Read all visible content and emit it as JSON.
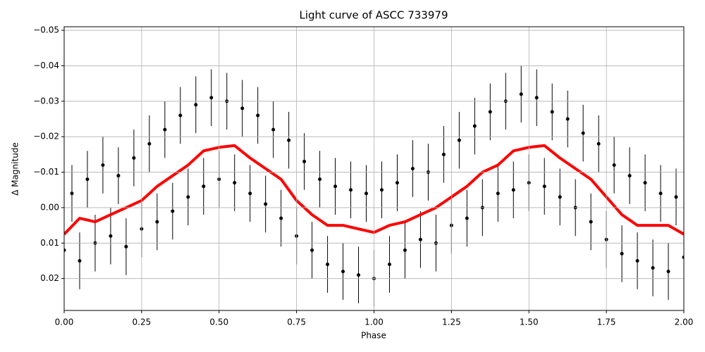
{
  "chart_data": {
    "type": "scatter_fit",
    "title": "Light curve of ASCC 733979",
    "x_label": "Phase",
    "y_label": "Δ Magnitude",
    "xlim": [
      0,
      2
    ],
    "ylim": [
      0.029,
      -0.051
    ],
    "xticks": [
      {
        "value": 0,
        "label": "0.00"
      },
      {
        "value": 0.25,
        "label": "0.25"
      },
      {
        "value": 0.5,
        "label": "0.50"
      },
      {
        "value": 0.75,
        "label": "0.75"
      },
      {
        "value": 1,
        "label": "1.00"
      },
      {
        "value": 1.25,
        "label": "1.25"
      },
      {
        "value": 1.5,
        "label": "1.50"
      },
      {
        "value": 1.75,
        "label": "1.75"
      },
      {
        "value": 2,
        "label": "2.00"
      }
    ],
    "yticks": [
      {
        "value": -0.05,
        "label": "−0.05"
      },
      {
        "value": -0.04,
        "label": "−0.04"
      },
      {
        "value": -0.03,
        "label": "−0.03"
      },
      {
        "value": -0.02,
        "label": "−0.02"
      },
      {
        "value": -0.01,
        "label": "−0.01"
      },
      {
        "value": 0,
        "label": "0.00"
      },
      0.01,
      0.02
    ],
    "grid": true,
    "series": [
      {
        "kind": "errorbar",
        "color": "#000000",
        "error": 0.008,
        "x": [
          0,
          0.025,
          0.05,
          0.075,
          0.1,
          0.125,
          0.15,
          0.175,
          0.2,
          0.225,
          0.25,
          0.275,
          0.3,
          0.325,
          0.35,
          0.375,
          0.4,
          0.425,
          0.45,
          0.475,
          0.5,
          0.525,
          0.55,
          0.575,
          0.6,
          0.625,
          0.65,
          0.675,
          0.7,
          0.725,
          0.75,
          0.775,
          0.8,
          0.825,
          0.85,
          0.875,
          0.9,
          0.925,
          0.95,
          0.975,
          1,
          1.025,
          1.05,
          1.075,
          1.1,
          1.125,
          1.15,
          1.175,
          1.2,
          1.225,
          1.25,
          1.275,
          1.3,
          1.325,
          1.35,
          1.375,
          1.4,
          1.425,
          1.45,
          1.475,
          1.5,
          1.525,
          1.55,
          1.575,
          1.6,
          1.625,
          1.65,
          1.675,
          1.7,
          1.725,
          1.75,
          1.775,
          1.8,
          1.825,
          1.85,
          1.875,
          1.9,
          1.925,
          1.95,
          1.975,
          2
        ],
        "values": [
          0.012,
          -0.004,
          0.015,
          -0.008,
          0.01,
          -0.012,
          0.008,
          -0.009,
          0.011,
          -0.014,
          0.006,
          -0.018,
          0.004,
          -0.022,
          0.001,
          -0.026,
          -0.003,
          -0.029,
          -0.006,
          -0.031,
          -0.008,
          -0.03,
          -0.007,
          -0.028,
          -0.004,
          -0.026,
          -0.001,
          -0.022,
          0.003,
          -0.019,
          0.008,
          -0.013,
          0.012,
          -0.008,
          0.016,
          -0.006,
          0.018,
          -0.005,
          0.019,
          -0.004,
          0.02,
          -0.005,
          0.016,
          -0.007,
          0.012,
          -0.011,
          0.009,
          -0.01,
          0.01,
          -0.015,
          0.005,
          -0.019,
          0.003,
          -0.023,
          0,
          -0.027,
          -0.004,
          -0.03,
          -0.005,
          -0.032,
          -0.007,
          -0.031,
          -0.006,
          -0.027,
          -0.003,
          -0.025,
          0,
          -0.021,
          0.004,
          -0.018,
          0.009,
          -0.012,
          0.013,
          -0.009,
          0.015,
          -0.007,
          0.017,
          -0.004,
          0.018,
          -0.003,
          0.014
        ]
      },
      {
        "kind": "line",
        "color": "#ff0000",
        "x": [
          0,
          0.05,
          0.1,
          0.15,
          0.2,
          0.25,
          0.3,
          0.35,
          0.4,
          0.45,
          0.5,
          0.55,
          0.6,
          0.65,
          0.7,
          0.75,
          0.8,
          0.85,
          0.9,
          0.95,
          1,
          1.05,
          1.1,
          1.15,
          1.2,
          1.25,
          1.3,
          1.35,
          1.4,
          1.45,
          1.5,
          1.55,
          1.6,
          1.65,
          1.7,
          1.75,
          1.8,
          1.85,
          1.9,
          1.95,
          2
        ],
        "values": [
          0.0075,
          0.003,
          0.004,
          0.002,
          0,
          -0.002,
          -0.006,
          -0.009,
          -0.012,
          -0.016,
          -0.017,
          -0.0175,
          -0.014,
          -0.011,
          -0.008,
          -0.002,
          0.002,
          0.005,
          0.005,
          0.006,
          0.007,
          0.005,
          0.004,
          0.002,
          0,
          -0.003,
          -0.006,
          -0.01,
          -0.012,
          -0.016,
          -0.017,
          -0.0175,
          -0.014,
          -0.011,
          -0.008,
          -0.003,
          0.002,
          0.005,
          0.005,
          0.005,
          0.0075
        ]
      }
    ]
  }
}
